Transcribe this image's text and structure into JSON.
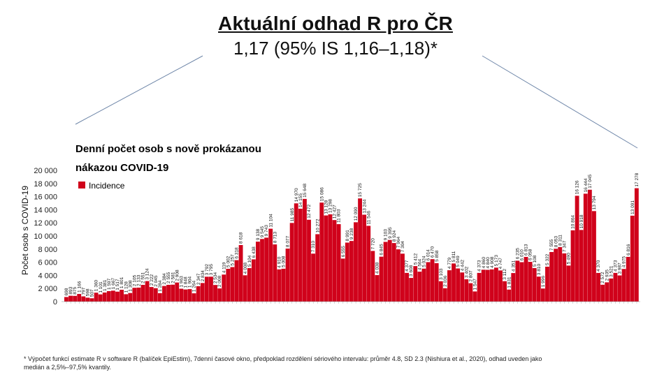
{
  "header": {
    "title": "Aktuální odhad R pro ČR",
    "estimate": "1,17 (95% IS 1,16–1,18)*"
  },
  "footnote": "* Výpočet funkcí estimate R v software R (balíček EpiEstim), 7denní časové okno, předpoklad rozdělení sériového intervalu: průměr 4.8, SD 2.3 (Nishiura et al., 2020), odhad uveden jako medián a 2,5%–97,5% kvantily.",
  "colors": {
    "bar": "#d0021b",
    "connector": "#6e86a8"
  },
  "chart_data": {
    "type": "bar",
    "title": "Denní počet osob s nově prokázanou nákazou COVID-19",
    "ylabel": "Počet osob s COVID-19",
    "xlabel": "",
    "ylim": [
      0,
      20000
    ],
    "yticks": [
      "0",
      "2 000",
      "4 000",
      "6 000",
      "8 000",
      "10 000",
      "12 000",
      "14 000",
      "16 000",
      "18 000",
      "20 000"
    ],
    "legend": {
      "position": "top-left",
      "label": "Incidence"
    },
    "grid": false,
    "series": [
      {
        "name": "Incidence",
        "values": [
          698,
          893,
          875,
          1166,
          797,
          598,
          507,
          1360,
          1101,
          1381,
          1597,
          1667,
          1517,
          1801,
          1128,
          1308,
          2105,
          2133,
          2551,
          3124,
          2222,
          2045,
          1284,
          2384,
          2555,
          2581,
          2908,
          1963,
          1848,
          1904,
          1264,
          2347,
          2834,
          3792,
          3795,
          2534,
          2008,
          4119,
          5002,
          5257,
          6318,
          8618,
          4008,
          5104,
          6438,
          9138,
          9545,
          9743,
          11104,
          8713,
          4910,
          5008,
          8077,
          11985,
          14970,
          14155,
          15648,
          12472,
          7310,
          10272,
          15086,
          13128,
          13298,
          12427,
          11803,
          6555,
          8991,
          9238,
          12090,
          15725,
          13244,
          11546,
          7720,
          4038,
          6845,
          9103,
          9395,
          8924,
          7964,
          7304,
          4377,
          3608,
          5412,
          4564,
          5024,
          6014,
          6470,
          5858,
          3103,
          2036,
          4779,
          5811,
          5049,
          4442,
          3402,
          2807,
          1547,
          4373,
          4860,
          4840,
          4908,
          5173,
          4747,
          3112,
          1831,
          4351,
          6235,
          6010,
          6813,
          6058,
          5108,
          3810,
          1996,
          5322,
          7555,
          8053,
          8311,
          7347,
          5490,
          10864,
          16126,
          10918,
          16444,
          17045,
          13794,
          4370,
          2572,
          2935,
          3521,
          4373,
          3987,
          4975,
          6816,
          13091,
          17278
        ],
        "labels": [
          "698",
          "893",
          "875",
          "1 166",
          "797",
          "598",
          "507",
          "1 360",
          "1 101",
          "1 381",
          "1 597",
          "1 667",
          "1 517",
          "1 801",
          "1 128",
          "1 308",
          "2 105",
          "2 133",
          "2 551",
          "3 124",
          "2 222",
          "2 045",
          "1 284",
          "2 384",
          "2 555",
          "2 581",
          "2 908",
          "1 963",
          "1 848",
          "1 904",
          "1 264",
          "2 347",
          "2 834",
          "3 792",
          "3 795",
          "2 534",
          "2 008",
          "4 119",
          "5 002",
          "5 257",
          "6 318",
          "8 618",
          "4 008",
          "5 104",
          "6 438",
          "9 138",
          "9 545",
          "9 743",
          "11 104",
          "8 713",
          "4 910",
          "5 008",
          "8 077",
          "11 985",
          "14 970",
          "14 155",
          "15 648",
          "12 472",
          "7 310",
          "10 272",
          "15 086",
          "13 128",
          "13 298",
          "12 427",
          "11 803",
          "6 555",
          "8 991",
          "9 238",
          "12 090",
          "15 725",
          "13 244",
          "11 546",
          "7 720",
          "4 038",
          "6 845",
          "9 103",
          "9 395",
          "8 924",
          "7 964",
          "7 304",
          "4 377",
          "3 608",
          "5 412",
          "4 564",
          "5 024",
          "6 014",
          "6 470",
          "5 858",
          "3 103",
          "2 036",
          "4 779",
          "5 811",
          "5 049",
          "4 442",
          "3 402",
          "2 807",
          "1 547",
          "4 373",
          "4 860",
          "4 840",
          "4 908",
          "5 173",
          "4 747",
          "3 112",
          "1 831",
          "4 351",
          "6 235",
          "6 010",
          "6 813",
          "6 058",
          "5 108",
          "3 810",
          "1 996",
          "5 322",
          "7 555",
          "8 053",
          "8 311",
          "7 347",
          "5 490",
          "10 864",
          "16 126",
          "10 918",
          "16 444",
          "17 045",
          "13 794",
          "4 370",
          "2 572",
          "2 935",
          "3 521",
          "4 373",
          "3 987",
          "4 975",
          "6 816",
          "13 091",
          "17 278"
        ]
      }
    ]
  }
}
